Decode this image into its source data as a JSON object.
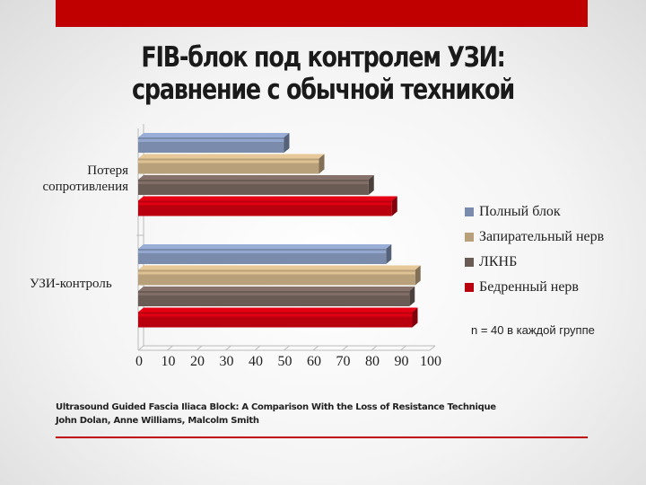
{
  "title_line1": "FIB-блок под контролем УЗИ:",
  "title_line2": "сравнение с обычной техникой",
  "chart_data": {
    "type": "bar",
    "orientation": "horizontal",
    "categories": [
      "Потеря сопротивления",
      "УЗИ-контроль"
    ],
    "category_label_lines": [
      [
        "Потеря",
        "сопротивления"
      ],
      [
        "УЗИ-контроль"
      ]
    ],
    "series": [
      {
        "name": "Полный блок",
        "values": [
          50,
          85
        ],
        "color": "#7a8bab"
      },
      {
        "name": "Запирательный нерв",
        "values": [
          62,
          95
        ],
        "color": "#b8a07a"
      },
      {
        "name": "ЛКНБ",
        "values": [
          79,
          93
        ],
        "color": "#6b5b55"
      },
      {
        "name": "Бедренный нерв",
        "values": [
          87,
          94
        ],
        "color": "#b8000f"
      }
    ],
    "xlim": [
      0,
      100
    ],
    "xticks": [
      0,
      10,
      20,
      30,
      40,
      50,
      60,
      70,
      80,
      90,
      100
    ],
    "legend": "right",
    "annotation": "n = 40 в каждой группе"
  },
  "reference_line1": "Ultrasound Guided Fascia Iliaca Block: A Comparison With the Loss of Resistance Technique",
  "reference_line2": "John Dolan, Anne Williams, Malcolm Smith"
}
